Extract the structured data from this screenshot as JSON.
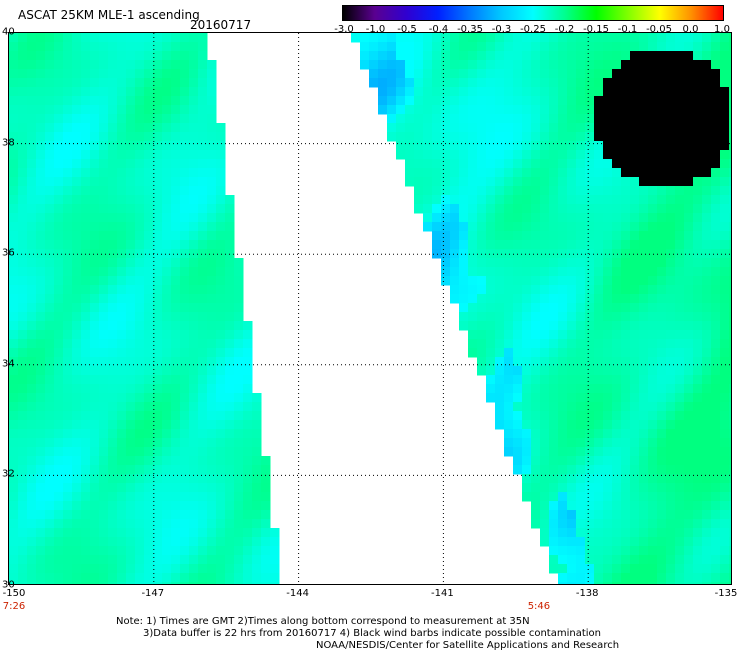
{
  "header": {
    "title": "ASCAT 25KM MLE-1 ascending",
    "date": "20160717"
  },
  "colorbar": {
    "labels": [
      "-3.0",
      "-1.0",
      "-0.5",
      "-0.4",
      "-0.35",
      "-0.3",
      "-0.25",
      "-0.2",
      "-0.15",
      "-0.1",
      "-0.05",
      "0.0",
      "1.0"
    ],
    "colors": [
      "#000000",
      "#5a0090",
      "#3000d0",
      "#0020ff",
      "#0078ff",
      "#00c8ff",
      "#00ffff",
      "#00ff90",
      "#00ff00",
      "#80ff00",
      "#ffff00",
      "#ff9000",
      "#ff0000"
    ]
  },
  "map": {
    "lat_labels": [
      "40",
      "38",
      "36",
      "34",
      "32",
      "30"
    ],
    "lon_labels": [
      "-150",
      "-147",
      "-144",
      "-141",
      "-138",
      "-135"
    ],
    "lat_range": [
      30,
      40
    ],
    "lon_range": [
      -150,
      -135
    ],
    "pass_times": [
      {
        "text": "7:26",
        "lon": -150
      },
      {
        "text": "5:46",
        "lon": -139
      }
    ],
    "field_colors": {
      "cyan": "#00ffff",
      "green": "#00ff80",
      "blue": "#00a0ff",
      "yellow": "#c0ff00"
    }
  },
  "notes": {
    "line1": "Note: 1) Times are GMT  2)Times along bottom correspond to measurement at 35N",
    "line2": "3)Data buffer is 22 hrs from 20160717  4) Black wind barbs indicate possible contamination",
    "line3": "NOAA/NESDIS/Center for Satellite Applications and Research"
  }
}
